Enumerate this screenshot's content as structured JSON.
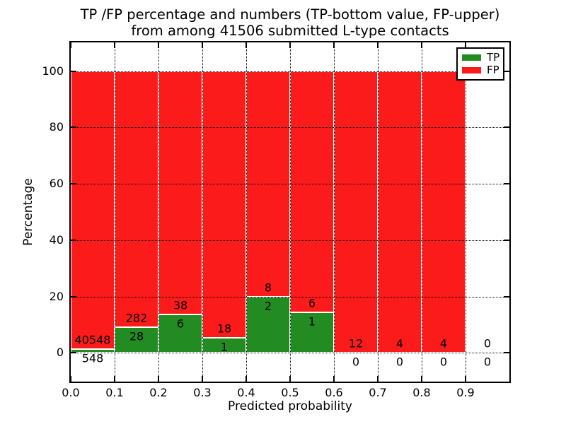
{
  "title": {
    "line1": "TP /FP percentage and numbers (TP-bottom value, FP-upper)",
    "line2": "from among 41506 submitted L-type contacts"
  },
  "chart_data": {
    "type": "bar",
    "subtype": "stacked-percentage-histogram",
    "title": "TP /FP percentage and numbers (TP-bottom value, FP-upper)\nfrom among 41506 submitted L-type contacts",
    "xlabel": "Predicted probability",
    "ylabel": "Percentage",
    "xlim": [
      0.0,
      1.0
    ],
    "ylim": [
      -10.2,
      110.2
    ],
    "xticks": [
      0.0,
      0.1,
      0.2,
      0.3,
      0.4,
      0.5,
      0.6,
      0.7,
      0.8,
      0.9
    ],
    "xtick_labels": [
      "0.0",
      "0.1",
      "0.2",
      "0.3",
      "0.4",
      "0.5",
      "0.6",
      "0.7",
      "0.8",
      "0.9"
    ],
    "yticks": [
      0,
      20,
      40,
      60,
      80,
      100
    ],
    "ytick_labels": [
      "0",
      "20",
      "40",
      "60",
      "80",
      "100"
    ],
    "grid": "dotted black, both axes, drawn above bars",
    "bin_width": 0.1,
    "categories": [
      "0.0-0.1",
      "0.1-0.2",
      "0.2-0.3",
      "0.3-0.4",
      "0.4-0.5",
      "0.5-0.6",
      "0.6-0.7",
      "0.7-0.8",
      "0.8-0.9",
      "0.9-1.0"
    ],
    "series": [
      {
        "name": "TP",
        "color": "#228b22",
        "counts": [
          548,
          28,
          6,
          1,
          2,
          1,
          0,
          0,
          0,
          0
        ]
      },
      {
        "name": "FP",
        "color": "#fb1b1b",
        "counts": [
          40548,
          282,
          38,
          18,
          8,
          6,
          12,
          4,
          4,
          0
        ]
      }
    ],
    "tp_percent": [
      1.33,
      9.03,
      13.64,
      5.26,
      20.0,
      14.29,
      0,
      0,
      0,
      null
    ],
    "total_contacts": 41506,
    "legend": {
      "position": "upper-right",
      "entries": [
        {
          "label": "TP",
          "color": "#228b22"
        },
        {
          "label": "FP",
          "color": "#fb1b1b"
        }
      ]
    }
  }
}
